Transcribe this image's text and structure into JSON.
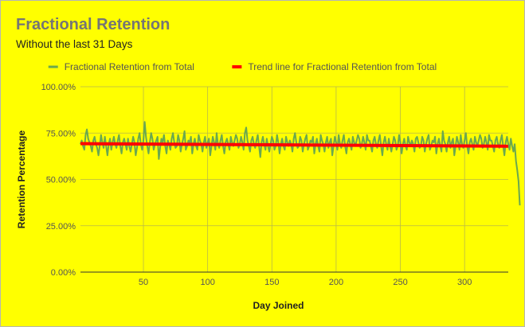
{
  "title": "Fractional Retention",
  "subtitle": "Without the last 31 Days",
  "colors": {
    "background": "#ffff00",
    "series": "#6aa84f",
    "trend": "#ff0000",
    "grid": "#b8b84a",
    "axis": "#333333"
  },
  "chart_data": {
    "type": "line",
    "title": "Fractional Retention",
    "subtitle": "Without the last 31 Days",
    "xlabel": "Day Joined",
    "ylabel": "Retention Percentage",
    "xlim": [
      1,
      334
    ],
    "ylim": [
      0,
      100
    ],
    "x_ticks": [
      50,
      100,
      150,
      200,
      250,
      300
    ],
    "y_ticks": [
      0,
      25,
      50,
      75,
      100
    ],
    "y_tick_labels": [
      "0.00%",
      "25.00%",
      "50.00%",
      "75.00%",
      "100.00%"
    ],
    "legend": {
      "position": "top"
    },
    "grid": true,
    "series": [
      {
        "name": "Fractional Retention from Total",
        "color": "#6aa84f",
        "x_start": 1,
        "x_step": 1,
        "values": [
          69,
          71,
          68,
          66,
          74,
          77,
          72,
          70,
          68,
          65,
          71,
          73,
          69,
          67,
          63,
          68,
          74,
          70,
          67,
          73,
          68,
          63,
          69,
          72,
          66,
          70,
          73,
          69,
          67,
          71,
          74,
          68,
          64,
          70,
          72,
          69,
          66,
          72,
          68,
          65,
          69,
          73,
          70,
          63,
          67,
          72,
          75,
          69,
          66,
          71,
          81,
          73,
          68,
          64,
          70,
          75,
          72,
          66,
          69,
          71,
          73,
          61,
          67,
          72,
          70,
          74,
          68,
          64,
          71,
          69,
          66,
          72,
          75,
          70,
          67,
          68,
          74,
          71,
          65,
          69,
          72,
          76,
          66,
          68,
          71,
          70,
          73,
          64,
          69,
          72,
          68,
          66,
          74,
          71,
          69,
          65,
          70,
          73,
          67,
          70,
          72,
          63,
          68,
          73,
          70,
          66,
          75,
          69,
          67,
          71,
          74,
          68,
          64,
          70,
          72,
          69,
          66,
          73,
          70,
          68,
          71,
          74,
          72,
          67,
          69,
          73,
          70,
          66,
          75,
          78,
          71,
          68,
          65,
          71,
          73,
          69,
          67,
          71,
          74,
          68,
          62,
          70,
          73,
          69,
          66,
          72,
          68,
          65,
          69,
          73,
          71,
          66,
          68,
          74,
          70,
          64,
          69,
          72,
          68,
          66,
          73,
          70,
          68,
          71,
          69,
          65,
          72,
          75,
          70,
          67,
          68,
          73,
          71,
          65,
          69,
          72,
          74,
          66,
          68,
          71,
          70,
          73,
          64,
          69,
          72,
          68,
          65,
          74,
          71,
          69,
          65,
          70,
          73,
          67,
          70,
          72,
          63,
          68,
          73,
          70,
          66,
          74,
          69,
          67,
          71,
          74,
          68,
          64,
          70,
          72,
          69,
          66,
          73,
          70,
          68,
          71,
          74,
          72,
          67,
          69,
          73,
          70,
          66,
          74,
          71,
          71,
          68,
          65,
          71,
          73,
          69,
          67,
          71,
          74,
          68,
          63,
          70,
          73,
          69,
          66,
          72,
          68,
          65,
          69,
          73,
          71,
          66,
          68,
          74,
          70,
          64,
          69,
          72,
          68,
          66,
          73,
          70,
          68,
          71,
          69,
          65,
          72,
          73,
          70,
          67,
          68,
          73,
          71,
          65,
          69,
          72,
          74,
          66,
          68,
          71,
          70,
          73,
          64,
          69,
          72,
          68,
          65,
          76,
          71,
          69,
          65,
          70,
          73,
          67,
          70,
          72,
          63,
          68,
          73,
          70,
          66,
          74,
          69,
          67,
          71,
          75,
          68,
          64,
          70,
          72,
          69,
          66,
          73,
          70,
          68,
          71,
          74,
          72,
          67,
          69,
          73,
          70,
          66,
          74,
          71,
          71,
          68,
          65,
          71,
          73,
          69,
          67,
          71,
          74,
          68,
          63,
          70,
          73,
          69,
          66,
          72,
          68,
          65,
          69,
          60,
          55,
          49,
          36
        ]
      },
      {
        "name": "Trend line for Fractional Retention from Total",
        "color": "#ff0000",
        "type": "trendline",
        "x": [
          1,
          334
        ],
        "values": [
          69.3,
          67.9
        ]
      }
    ]
  }
}
